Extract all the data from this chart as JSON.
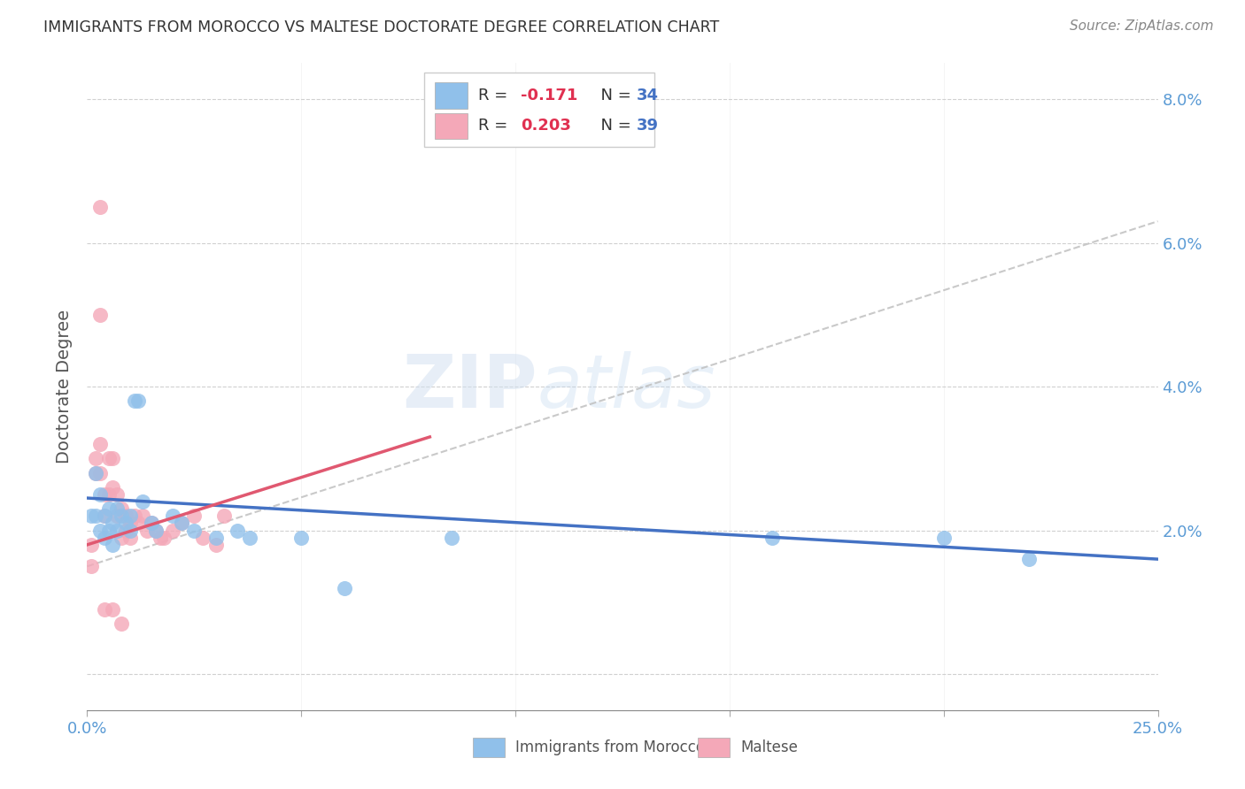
{
  "title": "IMMIGRANTS FROM MOROCCO VS MALTESE DOCTORATE DEGREE CORRELATION CHART",
  "source": "Source: ZipAtlas.com",
  "xlim": [
    0.0,
    0.25
  ],
  "ylim": [
    -0.005,
    0.085
  ],
  "ylabel": "Doctorate Degree",
  "legend_label1": "Immigrants from Morocco",
  "legend_label2": "Maltese",
  "R1": -0.171,
  "N1": 34,
  "R2": 0.203,
  "N2": 39,
  "color_blue": "#90C0EA",
  "color_pink": "#F4A8B8",
  "color_trend_blue": "#4472C4",
  "color_trend_pink": "#E05870",
  "color_trend_dashed": "#C0C0C0",
  "watermark_zip": "ZIP",
  "watermark_atlas": "atlas",
  "blue_x": [
    0.001,
    0.002,
    0.002,
    0.003,
    0.003,
    0.004,
    0.004,
    0.005,
    0.005,
    0.006,
    0.006,
    0.007,
    0.007,
    0.008,
    0.009,
    0.01,
    0.01,
    0.011,
    0.012,
    0.013,
    0.015,
    0.016,
    0.02,
    0.022,
    0.025,
    0.03,
    0.035,
    0.038,
    0.05,
    0.06,
    0.085,
    0.16,
    0.2,
    0.22
  ],
  "blue_y": [
    0.022,
    0.028,
    0.022,
    0.025,
    0.02,
    0.022,
    0.019,
    0.02,
    0.023,
    0.021,
    0.018,
    0.023,
    0.02,
    0.022,
    0.021,
    0.022,
    0.02,
    0.038,
    0.038,
    0.024,
    0.021,
    0.02,
    0.022,
    0.021,
    0.02,
    0.019,
    0.02,
    0.019,
    0.019,
    0.012,
    0.019,
    0.019,
    0.019,
    0.016
  ],
  "pink_x": [
    0.001,
    0.001,
    0.002,
    0.002,
    0.003,
    0.003,
    0.004,
    0.004,
    0.005,
    0.005,
    0.006,
    0.006,
    0.007,
    0.007,
    0.008,
    0.008,
    0.009,
    0.009,
    0.01,
    0.01,
    0.011,
    0.012,
    0.013,
    0.014,
    0.015,
    0.016,
    0.017,
    0.018,
    0.02,
    0.022,
    0.025,
    0.027,
    0.03,
    0.032,
    0.003,
    0.003,
    0.004,
    0.006,
    0.008
  ],
  "pink_y": [
    0.018,
    0.015,
    0.03,
    0.028,
    0.032,
    0.028,
    0.025,
    0.022,
    0.03,
    0.025,
    0.03,
    0.026,
    0.025,
    0.022,
    0.023,
    0.019,
    0.02,
    0.022,
    0.019,
    0.021,
    0.022,
    0.021,
    0.022,
    0.02,
    0.021,
    0.02,
    0.019,
    0.019,
    0.02,
    0.021,
    0.022,
    0.019,
    0.018,
    0.022,
    0.065,
    0.05,
    0.009,
    0.009,
    0.007
  ],
  "blue_trend_x0": 0.0,
  "blue_trend_y0": 0.0245,
  "blue_trend_x1": 0.25,
  "blue_trend_y1": 0.016,
  "pink_trend_x0": 0.0,
  "pink_trend_y0": 0.018,
  "pink_trend_x1": 0.08,
  "pink_trend_y1": 0.033,
  "dashed_trend_x0": 0.0,
  "dashed_trend_y0": 0.015,
  "dashed_trend_x1": 0.25,
  "dashed_trend_y1": 0.063
}
